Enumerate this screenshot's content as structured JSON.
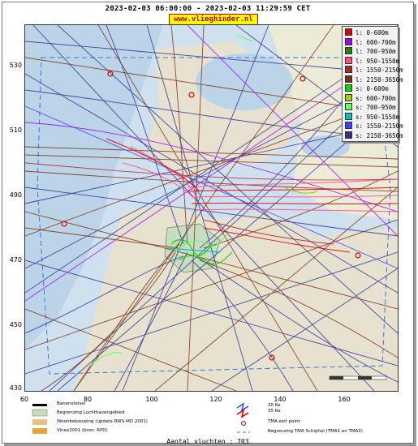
{
  "header": {
    "time_range": "2023-02-03 06:00:00 - 2023-02-03 11:29:59 CET",
    "site": "www.vlieghinder.nl"
  },
  "axes": {
    "y_ticks": [
      "530",
      "510",
      "490",
      "470",
      "450",
      "430"
    ],
    "x_ticks": [
      "60",
      "80",
      "100",
      "120",
      "140",
      "160"
    ]
  },
  "legend": [
    {
      "label": "l: 0-600m",
      "color": "#e00000"
    },
    {
      "label": "l: 600-700m",
      "color": "#a000ff"
    },
    {
      "label": "l: 700-950m",
      "color": "#2e7d00"
    },
    {
      "label": "l: 950-1550m",
      "color": "#ff5080"
    },
    {
      "label": "l: 1550-2150m",
      "color": "#b02828"
    },
    {
      "label": "l: 2150-3650m",
      "color": "#7a3010"
    },
    {
      "label": "s: 0-600m",
      "color": "#00dd00"
    },
    {
      "label": "s: 600-700m",
      "color": "#9ad400"
    },
    {
      "label": "s: 700-950m",
      "color": "#66ff66"
    },
    {
      "label": "s: 950-1550m",
      "color": "#00c0c0"
    },
    {
      "label": "s: 1550-2150m",
      "color": "#4040ff"
    },
    {
      "label": "s: 2150-3650m",
      "color": "#303090"
    }
  ],
  "bottom_legend": {
    "runway": "Banenstelsel",
    "airport_boundary": "Begrenzing Luchthavengebied",
    "housing": "Woonbebouwing (update RWS-MD 2001)",
    "vinex": "Vinex2001 (bron: RPD)",
    "ke20": "20 Ke",
    "ke35": "35 Ke",
    "tma_exit": "TMA exit point",
    "tma_boundary": "Begrenzing TMA Schiphol (TMA1 en TMA3)"
  },
  "footer": {
    "flight_count": "Aantal vluchten : 703"
  }
}
